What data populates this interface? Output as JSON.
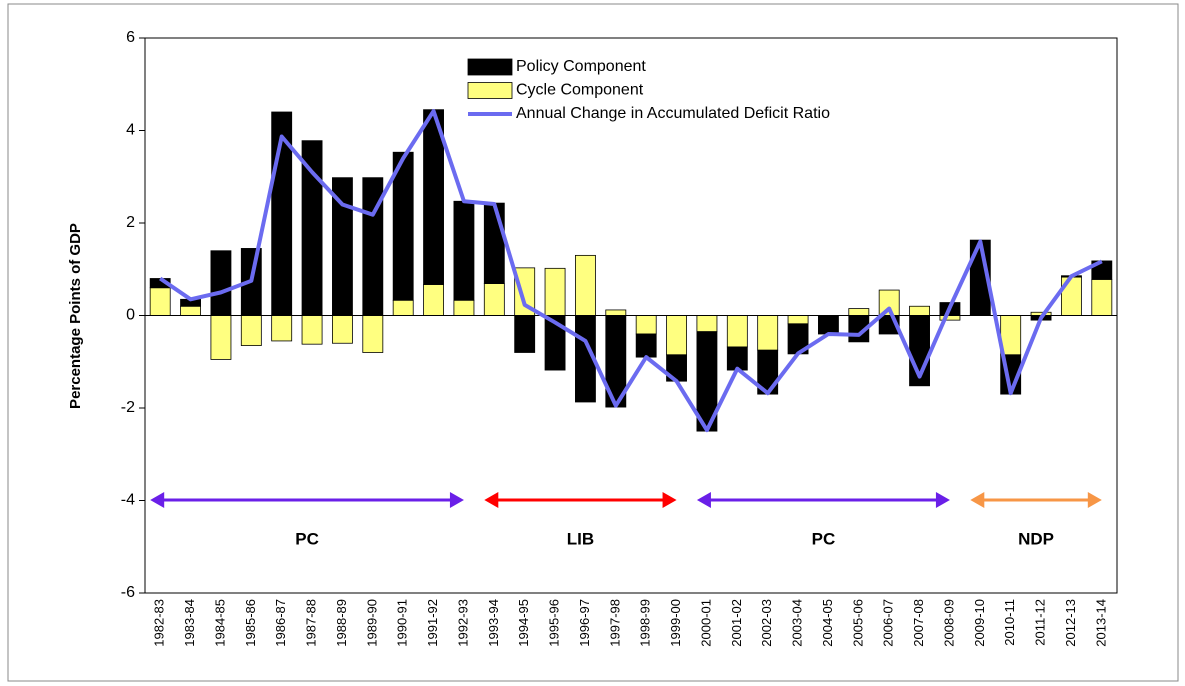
{
  "chart_data": {
    "type": "bar",
    "y_label": "Percentage Points of GDP",
    "categories": [
      "1982-83",
      "1983-84",
      "1984-85",
      "1985-86",
      "1986-87",
      "1987-88",
      "1988-89",
      "1989-90",
      "1990-91",
      "1991-92",
      "1992-93",
      "1993-94",
      "1994-95",
      "1995-96",
      "1996-97",
      "1997-98",
      "1998-99",
      "1999-00",
      "2000-01",
      "2001-02",
      "2002-03",
      "2003-04",
      "2004-05",
      "2005-06",
      "2006-07",
      "2007-08",
      "2008-09",
      "2009-10",
      "2010-11",
      "2011-12",
      "2012-13",
      "2013-14"
    ],
    "series": [
      {
        "name": "Policy Component",
        "color": "#000000",
        "kind": "bar",
        "values": [
          0.2,
          0.15,
          1.4,
          1.45,
          4.4,
          3.78,
          2.98,
          2.98,
          3.2,
          3.78,
          2.14,
          1.74,
          -0.8,
          -1.18,
          -1.87,
          -1.98,
          -0.5,
          -0.57,
          -2.15,
          -0.5,
          -0.95,
          -0.65,
          -0.4,
          -0.57,
          -0.4,
          -1.52,
          0.28,
          1.63,
          -0.85,
          -0.1,
          0.03,
          0.4
        ]
      },
      {
        "name": "Cycle Component",
        "color": "#ffff80",
        "kind": "bar",
        "values": [
          0.6,
          0.2,
          -0.95,
          -0.65,
          -0.55,
          -0.62,
          -0.6,
          -0.8,
          0.33,
          0.67,
          0.33,
          0.69,
          1.03,
          1.02,
          1.3,
          0.12,
          -0.4,
          -0.85,
          -0.35,
          -0.68,
          -0.75,
          -0.18,
          0,
          0.15,
          0.55,
          0.2,
          -0.1,
          0,
          -0.85,
          0.07,
          0.83,
          0.78
        ]
      },
      {
        "name": "Annual Change in Accumulated Deficit Ratio",
        "color": "#6b6bf0",
        "kind": "line",
        "values": [
          0.8,
          0.35,
          0.5,
          0.75,
          3.87,
          3.1,
          2.4,
          2.18,
          3.4,
          4.42,
          2.47,
          2.41,
          0.23,
          -0.15,
          -0.55,
          -1.95,
          -0.9,
          -1.42,
          -2.48,
          -1.15,
          -1.68,
          -0.82,
          -0.4,
          -0.42,
          0.15,
          -1.32,
          0.18,
          1.6,
          -1.68,
          -0.05,
          0.85,
          1.17
        ]
      }
    ],
    "stack_order": [
      "Cycle Component",
      "Policy Component"
    ],
    "ylim": [
      -6,
      6
    ],
    "yticks": [
      -6,
      -4,
      -2,
      0,
      2,
      4,
      6
    ],
    "annotations": [
      {
        "text": "PC",
        "color": "#6a1fe8",
        "text_color": "#6b6bf0",
        "from": "1982-83",
        "to": "1992-93"
      },
      {
        "text": "LIB",
        "color": "#ff0000",
        "text_color": "#ff0000",
        "from": "1993-94",
        "to": "1999-00"
      },
      {
        "text": "PC",
        "color": "#6a1fe8",
        "text_color": "#6b6bf0",
        "from": "2000-01",
        "to": "2008-09"
      },
      {
        "text": "NDP",
        "color": "#f79646",
        "text_color": "#f79646",
        "from": "2009-10",
        "to": "2013-14"
      }
    ]
  }
}
